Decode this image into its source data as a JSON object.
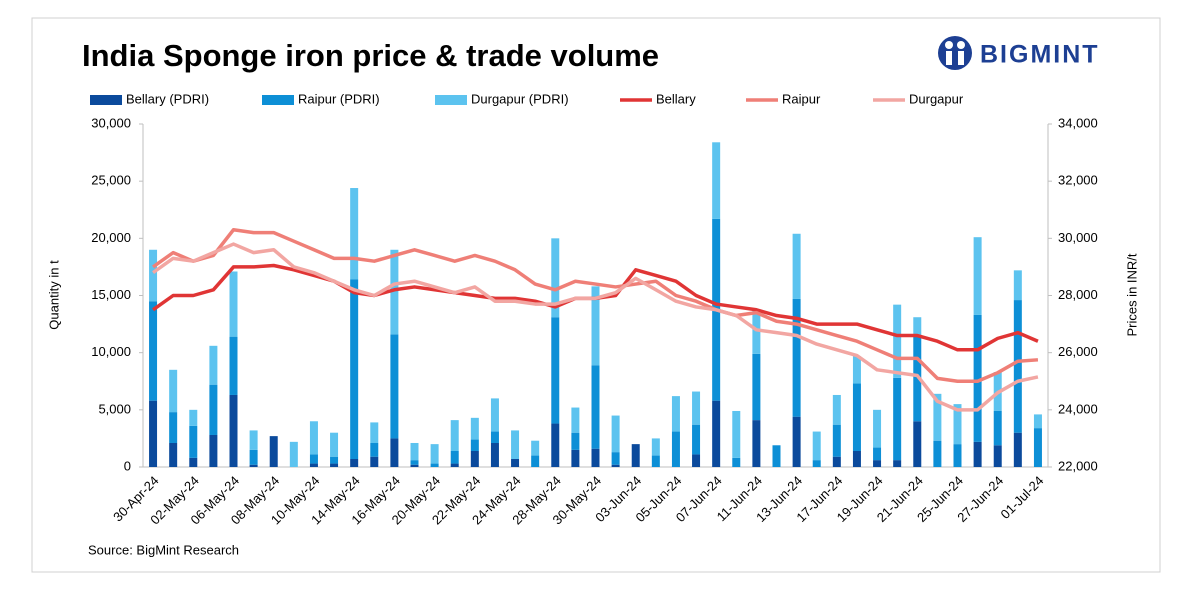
{
  "logo": "BIGMINT",
  "chart_data": {
    "type": "combo",
    "title": "India Sponge iron price & trade volume",
    "ylabel": "Quantity in t",
    "y2label": "Prices in INR/t",
    "source": "Source: BigMint Research",
    "categories": [
      "30-Apr-24",
      null,
      "02-May-24",
      null,
      "06-May-24",
      null,
      "08-May-24",
      null,
      "10-May-24",
      null,
      "14-May-24",
      null,
      "16-May-24",
      null,
      "20-May-24",
      null,
      "22-May-24",
      null,
      "24-May-24",
      null,
      "28-May-24",
      null,
      "30-May-24",
      null,
      "03-Jun-24",
      null,
      "05-Jun-24",
      null,
      "07-Jun-24",
      null,
      "11-Jun-24",
      null,
      "13-Jun-24",
      null,
      "17-Jun-24",
      null,
      "19-Jun-24",
      null,
      "21-Jun-24",
      null,
      "25-Jun-24",
      null,
      "27-Jun-24",
      null,
      "01-Jul-24"
    ],
    "ylim": [
      0,
      30000
    ],
    "yticks": [
      0,
      {
        "value": 5000,
        "label": "5,000"
      },
      {
        "value": 10000,
        "label": "10,000"
      },
      {
        "value": 15000,
        "label": "15,000"
      },
      {
        "value": 20000,
        "label": "20,000"
      },
      {
        "value": 25000,
        "label": "25,000"
      },
      {
        "value": 30000,
        "label": "30,000"
      }
    ],
    "y2lim": [
      22000,
      34000
    ],
    "y2ticks": [
      {
        "value": 22000,
        "label": "22,000"
      },
      {
        "value": 24000,
        "label": "24,000"
      },
      {
        "value": 26000,
        "label": "26,000"
      },
      {
        "value": 28000,
        "label": "28,000"
      },
      {
        "value": 30000,
        "label": "30,000"
      },
      {
        "value": 32000,
        "label": "32,000"
      },
      {
        "value": 34000,
        "label": "34,000"
      }
    ],
    "series": [
      {
        "name": "Bellary (PDRI)",
        "type": "bar",
        "color": "#0b4a9c",
        "values": [
          5800,
          2100,
          800,
          2800,
          6300,
          200,
          2700,
          0,
          300,
          300,
          700,
          900,
          2500,
          200,
          0,
          300,
          1400,
          2100,
          700,
          0,
          3800,
          1500,
          1600,
          200,
          2000,
          0,
          0,
          1100,
          5800,
          0,
          4100,
          0,
          4400,
          0,
          900,
          1400,
          600,
          600,
          4000,
          0,
          0,
          2200,
          1900,
          3000,
          0
        ]
      },
      {
        "name": "Raipur (PDRI)",
        "type": "bar",
        "color": "#0d8fd6",
        "values": [
          8700,
          2700,
          2800,
          4400,
          5100,
          1300,
          0,
          0,
          800,
          600,
          15700,
          1200,
          9100,
          400,
          300,
          1100,
          1000,
          1000,
          0,
          1000,
          9300,
          1500,
          7300,
          1100,
          0,
          1000,
          3100,
          2600,
          15900,
          800,
          5800,
          1900,
          10300,
          600,
          2800,
          5900,
          1100,
          7200,
          7400,
          2300,
          2000,
          11100,
          3000,
          11600,
          3400
        ]
      },
      {
        "name": "Durgapur (PDRI)",
        "type": "bar",
        "color": "#5cc3ef",
        "values": [
          4500,
          3700,
          1400,
          3400,
          5700,
          1700,
          0,
          2200,
          2900,
          2100,
          8000,
          1800,
          7400,
          1500,
          1700,
          2700,
          1900,
          2900,
          2500,
          1300,
          6900,
          2200,
          6900,
          3200,
          0,
          1500,
          3100,
          2900,
          6700,
          4100,
          3900,
          0,
          5700,
          2500,
          2600,
          2400,
          3300,
          6400,
          1700,
          4100,
          3500,
          6800,
          3400,
          2600,
          1200
        ]
      },
      {
        "name": "Bellary",
        "type": "line",
        "axis": "y2",
        "color": "#e03535",
        "values": [
          27500,
          28000,
          28000,
          28200,
          29000,
          29000,
          29050,
          28900,
          28700,
          28500,
          28100,
          28000,
          28200,
          28300,
          28200,
          28100,
          28000,
          27900,
          27900,
          27800,
          27600,
          27900,
          27900,
          28000,
          28900,
          28700,
          28500,
          28000,
          27700,
          27600,
          27500,
          27300,
          27200,
          27000,
          27000,
          27000,
          26800,
          26600,
          26600,
          26400,
          26100,
          26100,
          26500,
          26700,
          26400
        ]
      },
      {
        "name": "Raipur",
        "type": "line",
        "axis": "y2",
        "color": "#ef7f77",
        "values": [
          29000,
          29500,
          29200,
          29400,
          30300,
          30200,
          30200,
          29900,
          29600,
          29300,
          29300,
          29200,
          29400,
          29600,
          29400,
          29200,
          29400,
          29200,
          28900,
          28400,
          28200,
          28500,
          28400,
          28300,
          28400,
          28500,
          28000,
          27800,
          27500,
          27300,
          27400,
          27100,
          27000,
          26800,
          26600,
          26400,
          26100,
          25800,
          25800,
          25100,
          25000,
          25000,
          25300,
          25700,
          25750
        ]
      },
      {
        "name": "Durgapur",
        "type": "line",
        "axis": "y2",
        "color": "#f2a6a2",
        "values": [
          28800,
          29300,
          29200,
          29500,
          29800,
          29500,
          29600,
          29000,
          28800,
          28500,
          28200,
          28000,
          28400,
          28500,
          28300,
          28100,
          28300,
          27800,
          27800,
          27700,
          27700,
          27900,
          27900,
          28100,
          28600,
          28200,
          27800,
          27600,
          27500,
          27300,
          26800,
          26700,
          26600,
          26300,
          26100,
          25900,
          25400,
          25300,
          25200,
          24300,
          24000,
          24000,
          24600,
          25000,
          25150
        ]
      }
    ]
  }
}
